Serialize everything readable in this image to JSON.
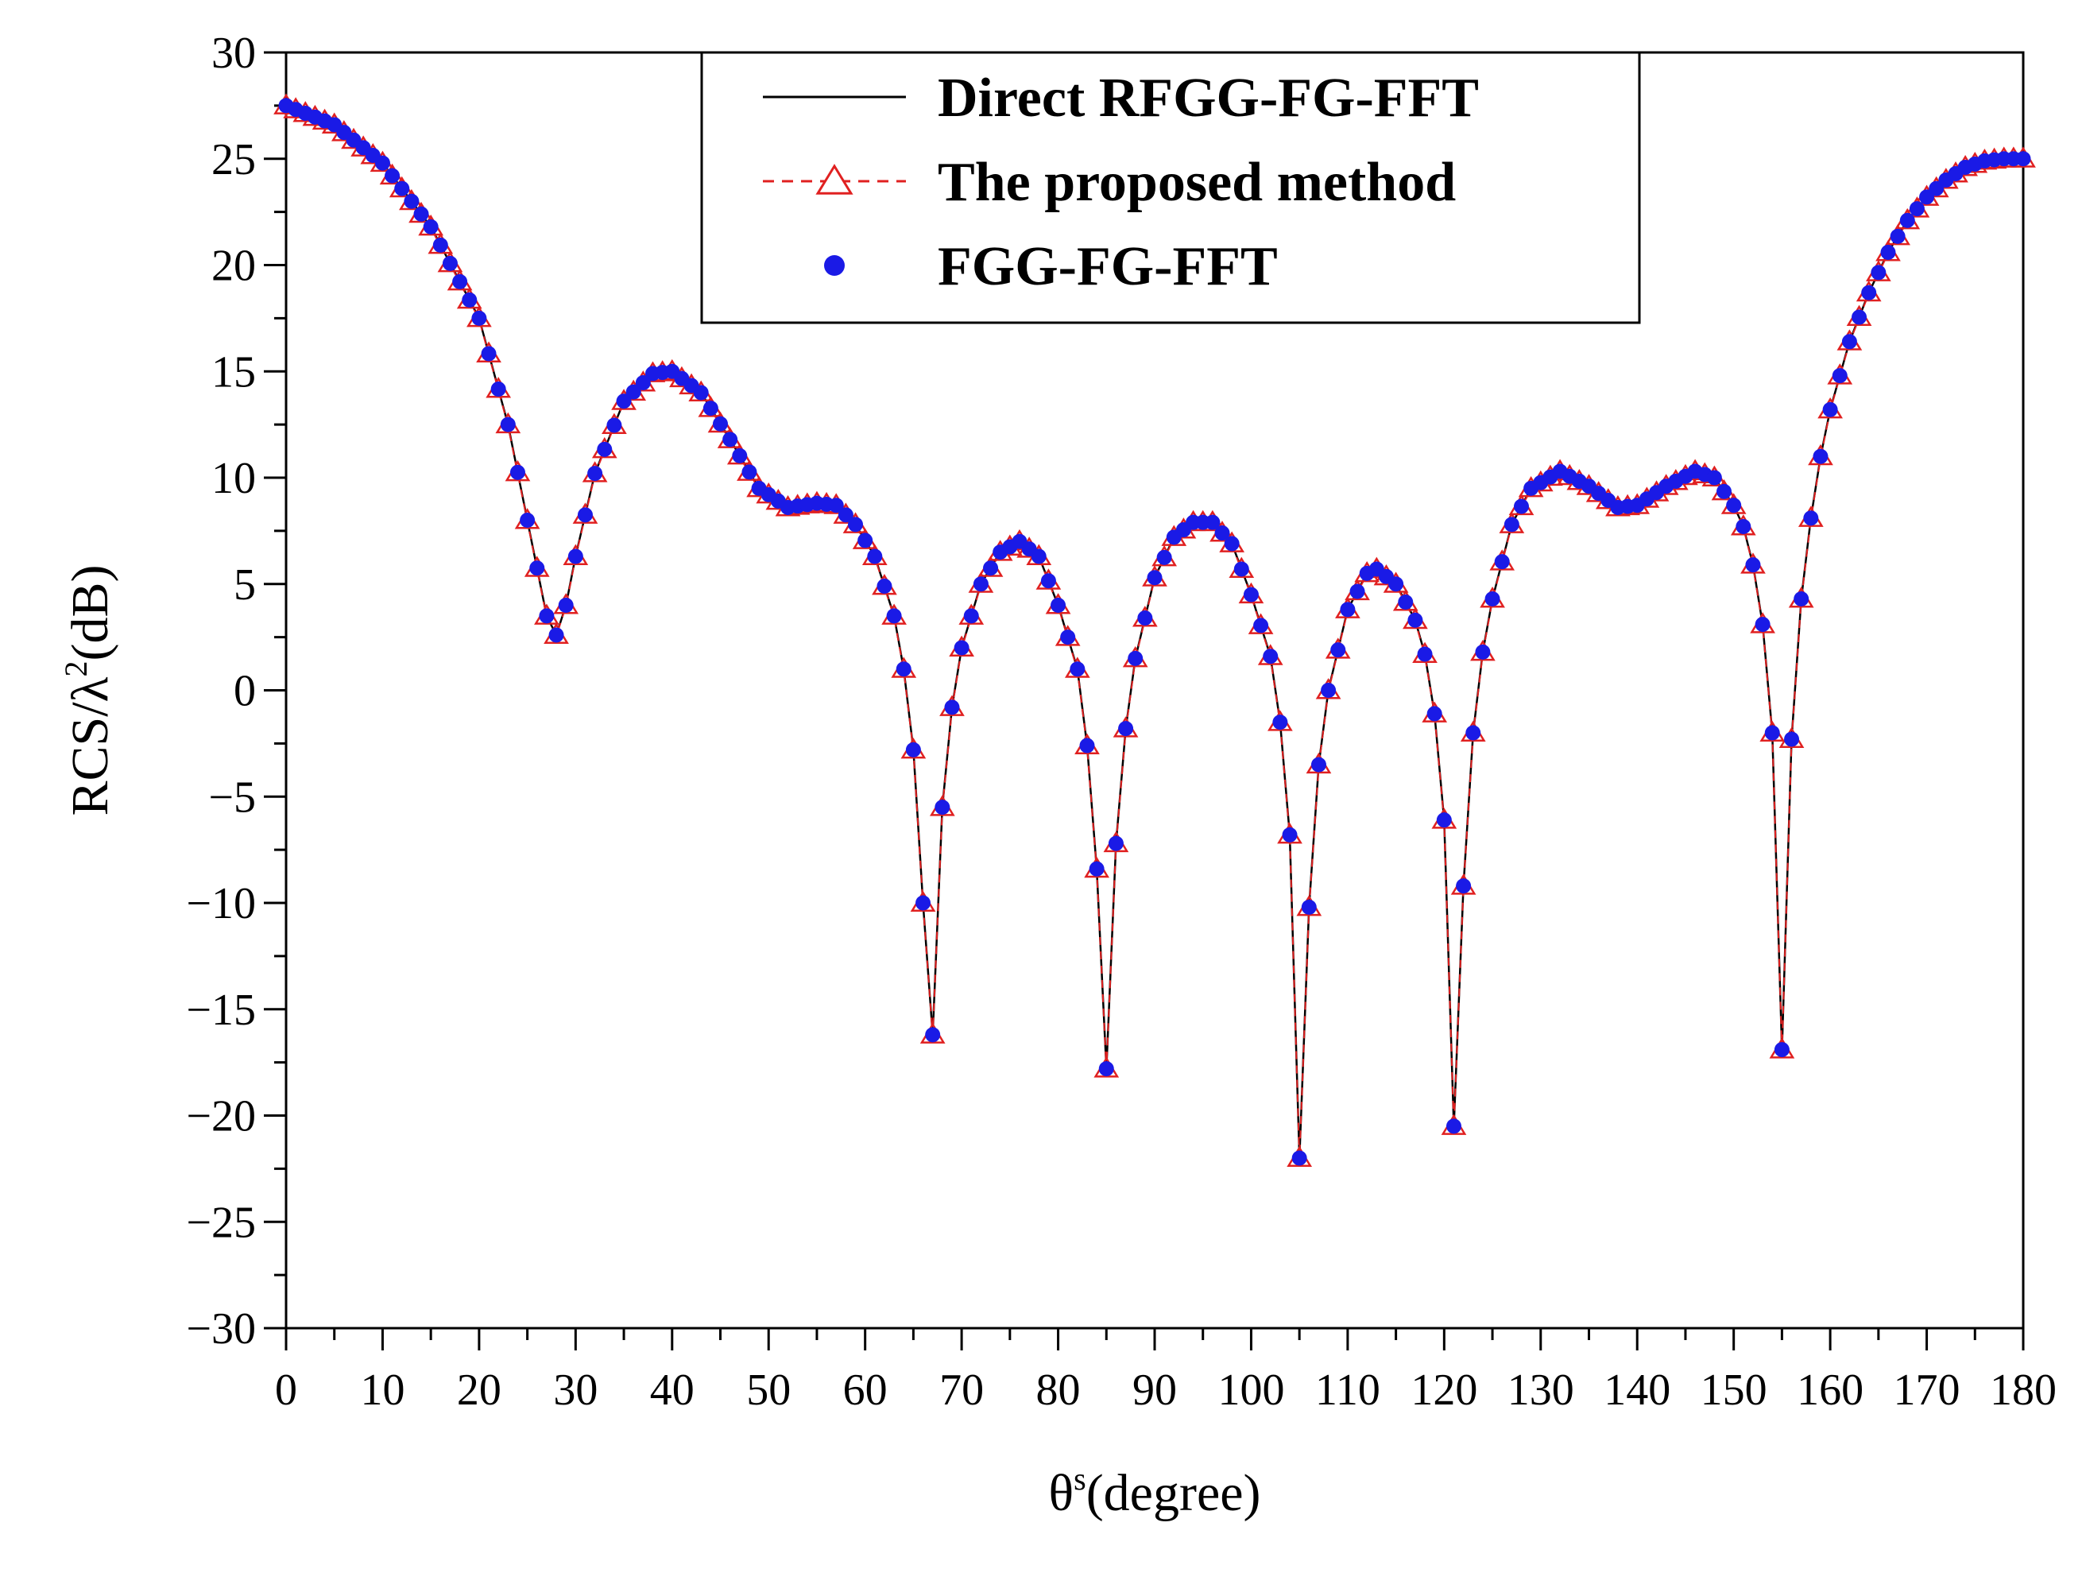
{
  "chart_data": {
    "type": "line",
    "xlabel": {
      "symbol": "θ",
      "superscript": "s",
      "rest": "(degree)"
    },
    "ylabel": {
      "prefix": "RCS/λ",
      "superscript": "2",
      "rest": "(dB)"
    },
    "xlim": [
      0,
      180
    ],
    "ylim": [
      -30,
      30
    ],
    "x_ticks": [
      0,
      10,
      20,
      30,
      40,
      50,
      60,
      70,
      80,
      90,
      100,
      110,
      120,
      130,
      140,
      150,
      160,
      170,
      180
    ],
    "x_tick_labels": [
      "0",
      "10",
      "20",
      "30",
      "40",
      "50",
      "60",
      "70",
      "80",
      "90",
      "100",
      "110",
      "120",
      "130",
      "140",
      "150",
      "160",
      "170",
      "180"
    ],
    "y_ticks": [
      30,
      25,
      20,
      15,
      10,
      5,
      0,
      -5,
      -10,
      -15,
      -20,
      -25,
      -30
    ],
    "y_tick_labels": [
      "30",
      "25",
      "20",
      "15",
      "10",
      "5",
      "0",
      "−5",
      "−10",
      "−15",
      "−20",
      "−25",
      "−30"
    ],
    "grid": false,
    "legend": {
      "position": "top-center",
      "entries": [
        {
          "label": "Direct RFGG-FG-FFT",
          "style": "solid-line",
          "color": "#000000"
        },
        {
          "label": "The proposed method",
          "style": "dashed-line-triangle",
          "color": "#e02020"
        },
        {
          "label": "FGG-FG-FFT",
          "style": "circle-marker",
          "color": "#1a1ae6"
        }
      ]
    },
    "control_points": [
      [
        0,
        27.5
      ],
      [
        5,
        26.6
      ],
      [
        10,
        24.8
      ],
      [
        15,
        21.8
      ],
      [
        20,
        17.5
      ],
      [
        23,
        12.5
      ],
      [
        25,
        8.0
      ],
      [
        27,
        3.5
      ],
      [
        28,
        2.6
      ],
      [
        29,
        4.0
      ],
      [
        30,
        6.3
      ],
      [
        32,
        10.2
      ],
      [
        35,
        13.6
      ],
      [
        38,
        14.9
      ],
      [
        40,
        15.0
      ],
      [
        43,
        14.0
      ],
      [
        46,
        11.8
      ],
      [
        49,
        9.5
      ],
      [
        52,
        8.6
      ],
      [
        55,
        8.8
      ],
      [
        57,
        8.7
      ],
      [
        59,
        7.8
      ],
      [
        61,
        6.3
      ],
      [
        63,
        3.5
      ],
      [
        64,
        1.0
      ],
      [
        65,
        -2.8
      ],
      [
        66,
        -10.0
      ],
      [
        67,
        -16.2
      ],
      [
        68,
        -5.5
      ],
      [
        69,
        -0.8
      ],
      [
        70,
        2.0
      ],
      [
        72,
        5.0
      ],
      [
        74,
        6.5
      ],
      [
        76,
        7.0
      ],
      [
        78,
        6.3
      ],
      [
        80,
        4.0
      ],
      [
        82,
        1.0
      ],
      [
        83,
        -2.6
      ],
      [
        84,
        -8.4
      ],
      [
        85,
        -17.8
      ],
      [
        86,
        -7.2
      ],
      [
        87,
        -1.8
      ],
      [
        88,
        1.5
      ],
      [
        90,
        5.3
      ],
      [
        92,
        7.2
      ],
      [
        94,
        7.9
      ],
      [
        96,
        7.9
      ],
      [
        98,
        6.9
      ],
      [
        100,
        4.5
      ],
      [
        102,
        1.6
      ],
      [
        103,
        -1.5
      ],
      [
        104,
        -6.8
      ],
      [
        105,
        -22.0
      ],
      [
        106,
        -10.2
      ],
      [
        107,
        -3.5
      ],
      [
        108,
        0.0
      ],
      [
        110,
        3.8
      ],
      [
        112,
        5.5
      ],
      [
        113,
        5.7
      ],
      [
        115,
        5.0
      ],
      [
        117,
        3.3
      ],
      [
        118,
        1.7
      ],
      [
        119,
        -1.1
      ],
      [
        120,
        -6.1
      ],
      [
        121,
        -20.5
      ],
      [
        122,
        -9.2
      ],
      [
        123,
        -2.0
      ],
      [
        124,
        1.8
      ],
      [
        125,
        4.3
      ],
      [
        127,
        7.8
      ],
      [
        129,
        9.5
      ],
      [
        132,
        10.3
      ],
      [
        135,
        9.6
      ],
      [
        138,
        8.6
      ],
      [
        140,
        8.7
      ],
      [
        143,
        9.6
      ],
      [
        146,
        10.3
      ],
      [
        148,
        10.0
      ],
      [
        150,
        8.7
      ],
      [
        151,
        7.7
      ],
      [
        152,
        5.9
      ],
      [
        153,
        3.1
      ],
      [
        154,
        -2.0
      ],
      [
        155,
        -16.9
      ],
      [
        156,
        -2.3
      ],
      [
        157,
        4.3
      ],
      [
        158,
        8.1
      ],
      [
        159,
        11.0
      ],
      [
        160,
        13.2
      ],
      [
        162,
        16.4
      ],
      [
        164,
        18.7
      ],
      [
        166,
        20.6
      ],
      [
        168,
        22.1
      ],
      [
        170,
        23.2
      ],
      [
        172,
        24.0
      ],
      [
        174,
        24.6
      ],
      [
        176,
        24.9
      ],
      [
        178,
        25.0
      ],
      [
        180,
        25.0
      ]
    ]
  }
}
